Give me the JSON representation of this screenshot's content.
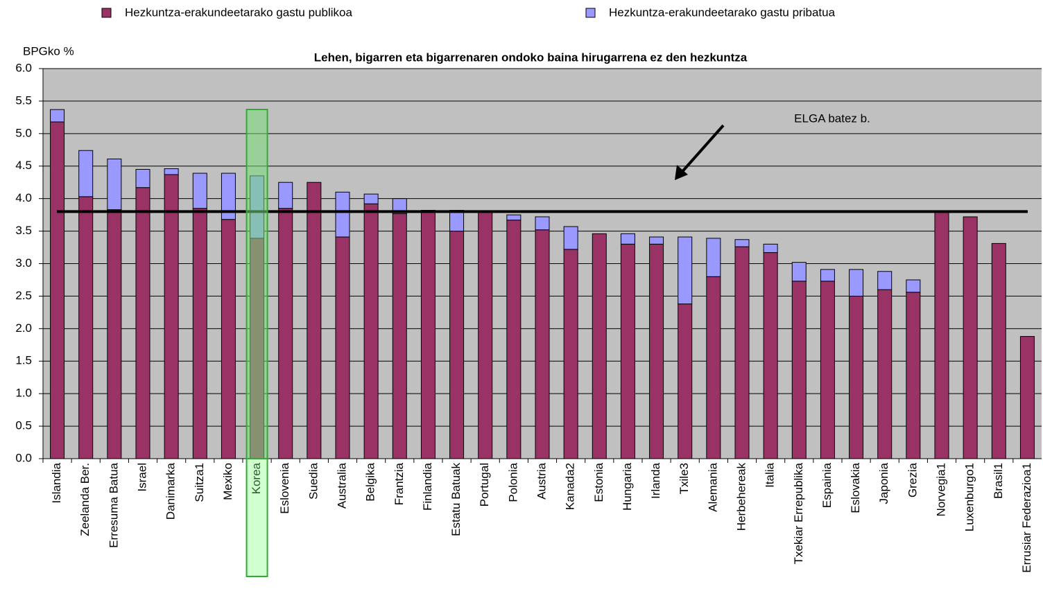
{
  "chart_data": {
    "type": "stacked_bar",
    "title": "Lehen, bigarren eta bigarrenaren ondoko baina hirugarrena ez den hezkuntza",
    "y_label": "BPGko %",
    "categories": [
      "Islandia",
      "Zeelanda Ber.",
      "Erresuma Batua",
      "Israel",
      "Danimarka",
      "Suitza1",
      "Mexiko",
      "Korea",
      "Eslovenia",
      "Suedia",
      "Australia",
      "Belgika",
      "Frantzia",
      "Finlandia",
      "Estatu Batuak",
      "Portugal",
      "Polonia",
      "Austria",
      "Kanada2",
      "Estonia",
      "Hungaria",
      "Irlanda",
      "Txile3",
      "Alemania",
      "Herbehereak",
      "Italia",
      "Txekiar Errepublika",
      "Espainia",
      "Eslovakia",
      "Japonia",
      "Grezia",
      "Norvegia1",
      "Luxenburgo1",
      "Brasil1",
      "Errusiar Federazioa1"
    ],
    "series": [
      {
        "name": "Hezkuntza-erakundeetarako gastu publikoa",
        "color": "#993366",
        "values": [
          5.18,
          4.03,
          3.83,
          4.17,
          4.37,
          3.85,
          3.68,
          3.39,
          3.85,
          4.25,
          3.41,
          3.92,
          3.77,
          3.82,
          3.5,
          3.8,
          3.67,
          3.52,
          3.22,
          3.46,
          3.3,
          3.3,
          2.38,
          2.8,
          3.26,
          3.17,
          2.73,
          2.73,
          2.5,
          2.6,
          2.56,
          3.8,
          3.72,
          3.31,
          1.88
        ]
      },
      {
        "name": "Hezkuntza-erakundeetarako gastu pribatua",
        "color": "#9999ff",
        "values": [
          0.19,
          0.71,
          0.78,
          0.28,
          0.09,
          0.54,
          0.71,
          0.96,
          0.4,
          0,
          0.69,
          0.15,
          0.23,
          0,
          0.32,
          0,
          0.08,
          0.2,
          0.35,
          0,
          0.16,
          0.11,
          1.03,
          0.59,
          0.11,
          0.13,
          0.29,
          0.18,
          0.41,
          0.28,
          0.19,
          0,
          0,
          0,
          0
        ]
      }
    ],
    "ylim": [
      0,
      6
    ],
    "yticks": [
      {
        "value": 0,
        "label": "0.0"
      },
      {
        "value": 0.5,
        "label": "0.5"
      },
      {
        "value": 1,
        "label": "1.0"
      },
      {
        "value": 1.5,
        "label": "1.5"
      },
      {
        "value": 2,
        "label": "2.0"
      },
      {
        "value": 2.5,
        "label": "2.5"
      },
      {
        "value": 3,
        "label": "3.0"
      },
      {
        "value": 3.5,
        "label": "3.5"
      },
      {
        "value": 4,
        "label": "4.0"
      },
      {
        "value": 4.5,
        "label": "4.5"
      },
      {
        "value": 5,
        "label": "5.0"
      },
      {
        "value": 5.5,
        "label": "5.5"
      },
      {
        "value": 6,
        "label": "6.0"
      }
    ],
    "grid": true,
    "plot_background": "#c0c0c0",
    "reference_line": {
      "value": 3.8,
      "label": "ELGA batez b."
    },
    "highlight": "Korea",
    "legend": "top"
  }
}
